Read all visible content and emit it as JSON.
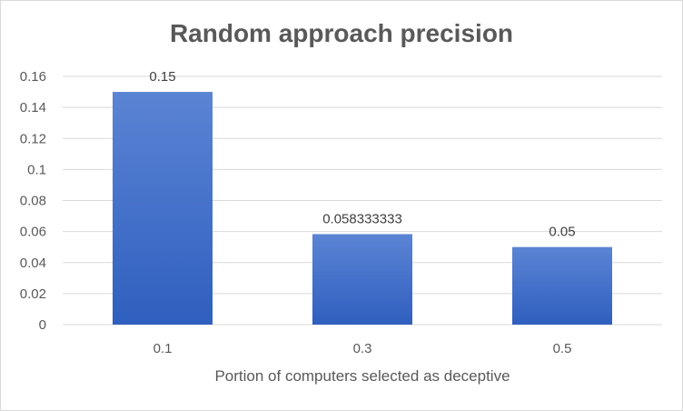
{
  "chart_data": {
    "type": "bar",
    "title": "Random approach precision",
    "xlabel": "Portion of computers selected as deceptive",
    "ylabel": "",
    "categories": [
      "0.1",
      "0.3",
      "0.5"
    ],
    "values": [
      0.15,
      0.058333333,
      0.05
    ],
    "data_labels": [
      "0.15",
      "0.058333333",
      "0.05"
    ],
    "yticks": [
      "0",
      "0.02",
      "0.04",
      "0.06",
      "0.08",
      "0.1",
      "0.12",
      "0.14",
      "0.16"
    ],
    "ylim": [
      0,
      0.16
    ],
    "grid": true,
    "legend": "none",
    "colors": {
      "bar_top": "#5b84d4",
      "bar_bottom": "#2f5fbf",
      "grid": "#d9d9d9",
      "text": "#595959"
    }
  }
}
